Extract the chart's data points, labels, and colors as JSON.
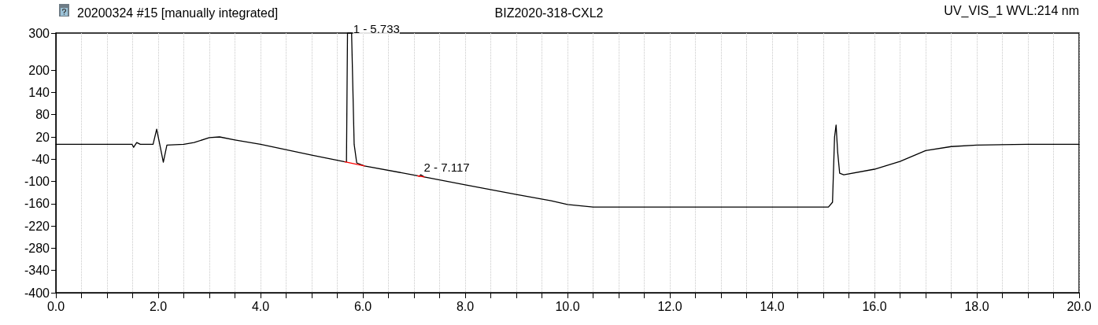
{
  "chart_data": {
    "type": "line",
    "title": "20200324 #15 [manually integrated]",
    "subtitle": "BIZ2020-318-CXL2",
    "annotations": [
      "UV_VIS_1 WVL:214 nm",
      {
        "text": "1 - 5.733",
        "x": 5.733,
        "y": 290
      },
      {
        "text": "2 - 7.117",
        "x": 7.117,
        "y": -84
      }
    ],
    "series": [
      {
        "color": "#000000",
        "x": [
          0,
          1.49,
          1.52,
          1.58,
          1.65,
          1.9,
          1.97,
          2.03,
          2.1,
          2.17,
          2.5,
          2.7,
          3.0,
          3.2,
          3.5,
          4.0,
          5.0,
          5.65,
          5.68,
          5.7,
          5.73,
          5.78,
          5.83,
          5.88,
          6.03,
          7.05,
          7.11,
          7.13,
          7.2,
          8.0,
          9.0,
          9.68,
          10.0,
          10.5,
          12.0,
          14.0,
          15.1,
          15.18,
          15.22,
          15.25,
          15.28,
          15.32,
          15.4,
          16.0,
          16.5,
          17.0,
          17.5,
          18.0,
          19.0,
          20.0
        ],
        "values": [
          0,
          0,
          -8,
          5,
          0,
          0,
          41,
          0,
          -48,
          -2,
          0,
          5,
          18,
          20,
          12,
          0,
          -29,
          -47,
          -47,
          300,
          300,
          300,
          0,
          -50,
          -58,
          -84,
          -86,
          -82,
          -88,
          -109,
          -135,
          -152,
          -162,
          -169,
          -169,
          -169,
          -169,
          -156,
          20,
          52,
          -20,
          -78,
          -82,
          -67,
          -46,
          -17,
          -6,
          -2,
          0,
          0
        ]
      },
      {
        "color": "#ff0000",
        "x": [
          5.65,
          6.03
        ],
        "values": [
          -47,
          -58
        ]
      },
      {
        "color": "#ff0000",
        "x": [
          7.07,
          7.2
        ],
        "values": [
          -85,
          -88
        ]
      }
    ],
    "xlim": [
      0,
      20
    ],
    "ylim": [
      -400,
      300
    ],
    "xticks": [
      {
        "value": 0,
        "label": "0.0"
      },
      {
        "value": 0.5,
        "label": null
      },
      {
        "value": 1,
        "label": null
      },
      {
        "value": 1.5,
        "label": null
      },
      {
        "value": 2,
        "label": "2.0"
      },
      {
        "value": 2.5,
        "label": null
      },
      {
        "value": 3,
        "label": null
      },
      {
        "value": 3.5,
        "label": null
      },
      {
        "value": 4,
        "label": "4.0"
      },
      {
        "value": 4.5,
        "label": null
      },
      {
        "value": 5,
        "label": null
      },
      {
        "value": 5.5,
        "label": null
      },
      {
        "value": 6,
        "label": "6.0"
      },
      {
        "value": 6.5,
        "label": null
      },
      {
        "value": 7,
        "label": null
      },
      {
        "value": 7.5,
        "label": null
      },
      {
        "value": 8,
        "label": "8.0"
      },
      {
        "value": 8.5,
        "label": null
      },
      {
        "value": 9,
        "label": null
      },
      {
        "value": 9.5,
        "label": null
      },
      {
        "value": 10,
        "label": "10.0"
      },
      {
        "value": 10.5,
        "label": null
      },
      {
        "value": 11,
        "label": null
      },
      {
        "value": 11.5,
        "label": null
      },
      {
        "value": 12,
        "label": "12.0"
      },
      {
        "value": 12.5,
        "label": null
      },
      {
        "value": 13,
        "label": null
      },
      {
        "value": 13.5,
        "label": null
      },
      {
        "value": 14,
        "label": "14.0"
      },
      {
        "value": 14.5,
        "label": null
      },
      {
        "value": 15,
        "label": null
      },
      {
        "value": 15.5,
        "label": null
      },
      {
        "value": 16,
        "label": "16.0"
      },
      {
        "value": 16.5,
        "label": null
      },
      {
        "value": 17,
        "label": null
      },
      {
        "value": 17.5,
        "label": null
      },
      {
        "value": 18,
        "label": "18.0"
      },
      {
        "value": 18.5,
        "label": null
      },
      {
        "value": 19,
        "label": null
      },
      {
        "value": 19.5,
        "label": null
      },
      {
        "value": 20,
        "label": "20.0"
      }
    ],
    "yticks": [
      300,
      200,
      140,
      80,
      20,
      -40,
      -100,
      -160,
      -220,
      -280,
      -340,
      -400
    ],
    "grid": "x",
    "marker": "none",
    "line_style": "solid"
  }
}
